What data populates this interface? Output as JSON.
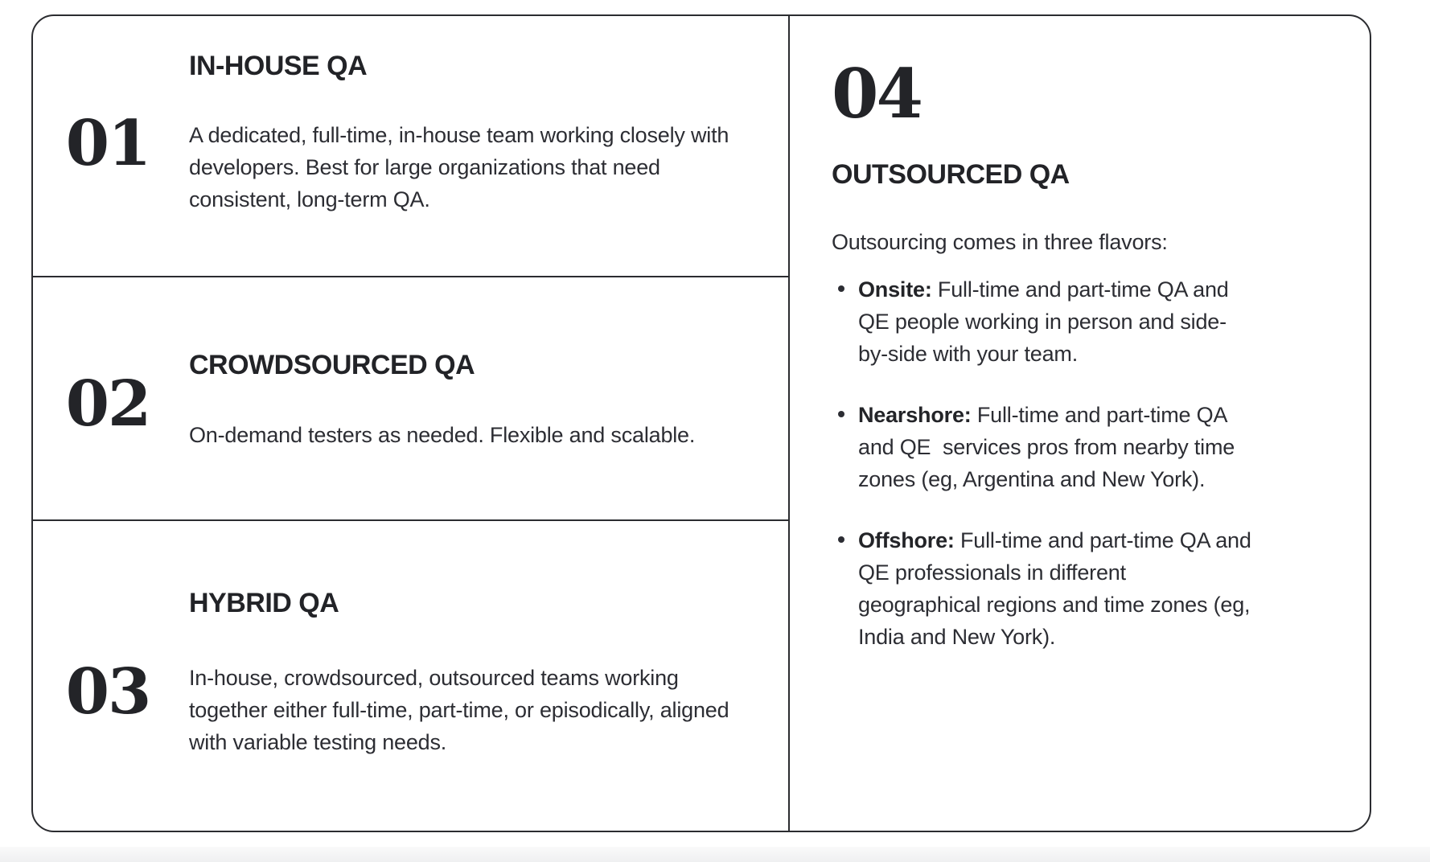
{
  "colors": {
    "border": "#2b2c30",
    "heading_text": "#222327",
    "body_text": "#2c2d33",
    "background": "#ffffff",
    "bottom_strip": "#f0f0f1"
  },
  "sections": [
    {
      "num": "01",
      "title": "IN-HOUSE QA",
      "body": "A dedicated, full-time, in-house team working closely with developers. Best for large organizations that need consistent, long-term QA."
    },
    {
      "num": "02",
      "title": "CROWDSOURCED QA",
      "body": "On-demand testers as needed. Flexible and scalable."
    },
    {
      "num": "03",
      "title": "HYBRID QA",
      "body": "In-house, crowdsourced, outsourced teams working together either full-time, part-time, or episodically, aligned with variable testing needs."
    }
  ],
  "outsourced": {
    "num": "04",
    "title": "OUTSOURCED QA",
    "intro": "Outsourcing comes in three flavors:",
    "bullets": [
      {
        "lead": "Onsite:",
        "text": " Full-time and part-time QA and QE people working in person and side-by-side with your team."
      },
      {
        "lead": "Nearshore:",
        "text": " Full-time and part-time QA and QE  services pros from nearby time zones (eg, Argentina and New York)."
      },
      {
        "lead": "Offshore:",
        "text": " Full-time and part-time QA and QE professionals in different geographical regions and time zones (eg, India and New York)."
      }
    ]
  }
}
